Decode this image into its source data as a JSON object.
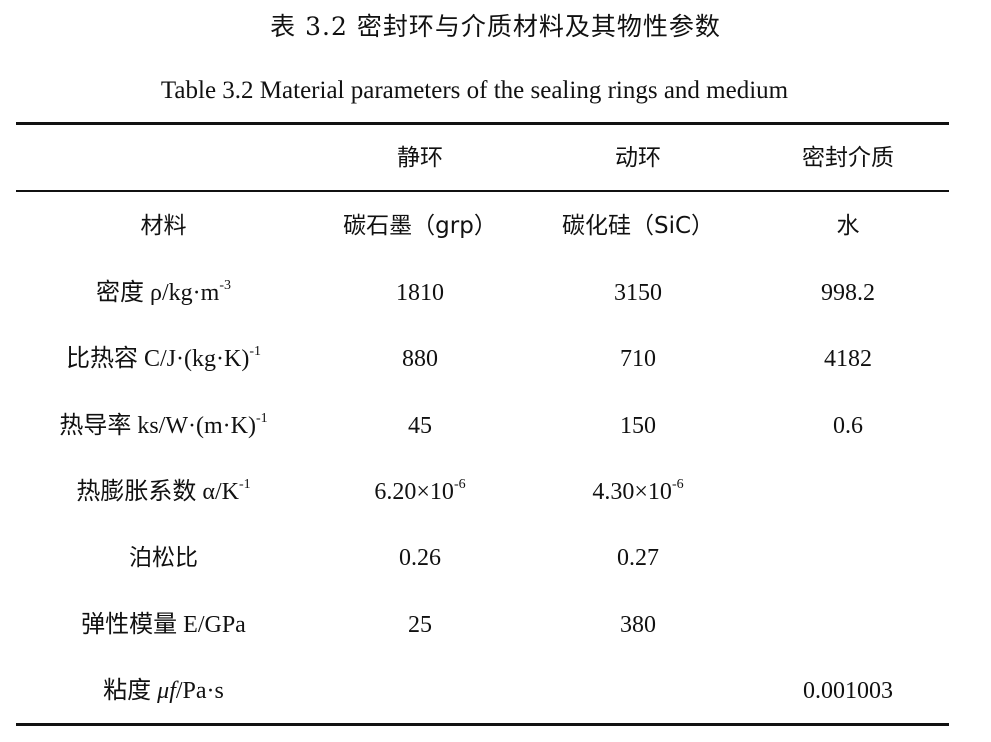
{
  "caption": {
    "cn": "表 3.2  密封环与介质材料及其物性参数",
    "en": "Table 3.2 Material parameters of the sealing rings and medium"
  },
  "table": {
    "headers": [
      "",
      "静环",
      "动环",
      "密封介质"
    ],
    "rows": [
      {
        "label_main": "材料",
        "label_unit": "",
        "label_sup": "",
        "values": [
          "碳石墨（grp）",
          "碳化硅（SiC）",
          "水"
        ]
      },
      {
        "label_main": "密度  ρ/kg·m",
        "label_unit": "",
        "label_sup": "-3",
        "values": [
          "1810",
          "3150",
          "998.2"
        ]
      },
      {
        "label_main": "比热容 C/J·(kg·K)",
        "label_unit": "",
        "label_sup": "-1",
        "values": [
          "880",
          "710",
          "4182"
        ]
      },
      {
        "label_main": "热导率  ks/W·(m·K)",
        "label_unit": "",
        "label_sup": "-1",
        "values": [
          "45",
          "150",
          "0.6"
        ]
      },
      {
        "label_main": "热膨胀系数 α/K",
        "label_unit": "",
        "label_sup": "-1",
        "values_sci": [
          {
            "base": "6.20×10",
            "exp": "-6"
          },
          {
            "base": "4.30×10",
            "exp": "-6"
          },
          {
            "base": "",
            "exp": ""
          }
        ]
      },
      {
        "label_main": "泊松比",
        "label_unit": "",
        "label_sup": "",
        "values": [
          "0.26",
          "0.27",
          ""
        ]
      },
      {
        "label_main": "弹性模量 E/GPa",
        "label_unit": "",
        "label_sup": "",
        "values": [
          "25",
          "380",
          ""
        ]
      },
      {
        "label_prefix": "粘度 ",
        "label_italic": "μf",
        "label_suffix": "/Pa·s",
        "values": [
          "",
          "",
          "0.001003"
        ]
      }
    ]
  }
}
